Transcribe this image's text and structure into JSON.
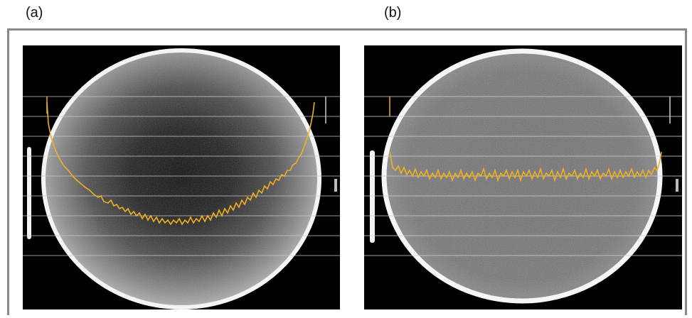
{
  "panels": [
    {
      "label": "(a)"
    },
    {
      "label": "(b)"
    }
  ],
  "colors": {
    "profile_line": "#f0b020",
    "grid_line": "#c8c8c8",
    "background": "#000000"
  }
}
